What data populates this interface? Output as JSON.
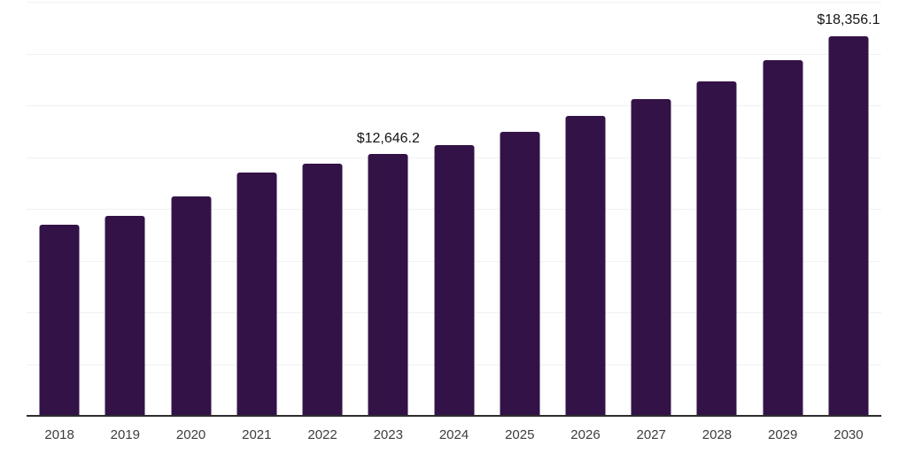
{
  "chart_data": {
    "type": "bar",
    "title": "",
    "xlabel": "",
    "ylabel": "",
    "categories": [
      "2018",
      "2019",
      "2020",
      "2021",
      "2022",
      "2023",
      "2024",
      "2025",
      "2026",
      "2027",
      "2028",
      "2029",
      "2030"
    ],
    "values": [
      9250,
      9640,
      10580,
      11760,
      12170,
      12646.2,
      13100,
      13720,
      14490,
      15310,
      16170,
      17200,
      18356.1
    ],
    "annotations": [
      {
        "category": "2023",
        "text": "$12,646.2"
      },
      {
        "category": "2030",
        "text": "$18,356.1"
      }
    ],
    "ylim": [
      0,
      20000
    ],
    "grid_interval": 2500,
    "grid": "horizontal-faint",
    "legend": "none",
    "colors": {
      "bar": "#331347",
      "axis_line": "#2d2d2d",
      "gridline": "#f1f1f1",
      "tick_label": "#3d3d3d",
      "value_label": "#141414",
      "background": "#ffffff"
    }
  }
}
